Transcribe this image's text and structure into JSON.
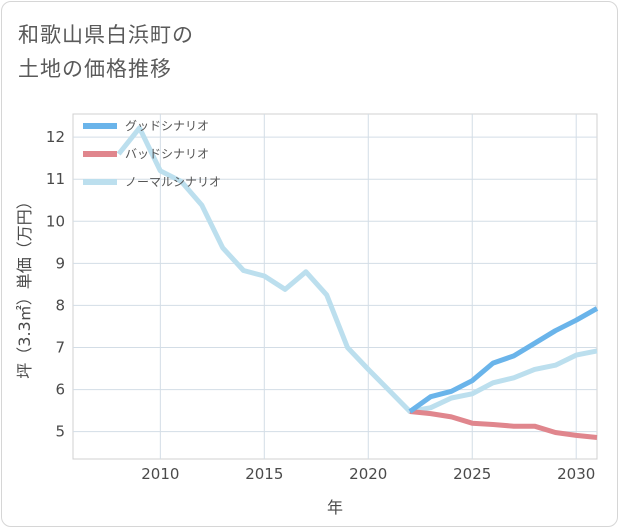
{
  "title_lines": [
    "和歌山県白浜町の",
    "土地の価格推移"
  ],
  "chart_data": {
    "type": "line",
    "xlabel": "年",
    "ylabel": "坪（3.3㎡）単価（万円）",
    "xlim": [
      2005.8,
      2031
    ],
    "ylim": [
      4.35,
      12.55
    ],
    "xticks": [
      2010,
      2015,
      2020,
      2025,
      2030
    ],
    "yticks": [
      5,
      6,
      7,
      8,
      9,
      10,
      11,
      12
    ],
    "grid": true,
    "legend_position": "top-left",
    "series": [
      {
        "name": "グッドシナリオ",
        "color": "#6ab4ea",
        "x": [
          2022,
          2023,
          2024,
          2025,
          2026,
          2027,
          2028,
          2029,
          2030,
          2031
        ],
        "y": [
          5.48,
          5.83,
          5.96,
          6.21,
          6.63,
          6.8,
          7.1,
          7.4,
          7.65,
          7.93
        ]
      },
      {
        "name": "バッドシナリオ",
        "color": "#e0868d",
        "x": [
          2022,
          2023,
          2024,
          2025,
          2026,
          2027,
          2028,
          2029,
          2030,
          2031
        ],
        "y": [
          5.48,
          5.43,
          5.35,
          5.2,
          5.17,
          5.13,
          5.13,
          4.98,
          4.91,
          4.86
        ]
      },
      {
        "name": "ノーマルシナリオ",
        "color": "#bcdfee",
        "x": [
          2008,
          2009,
          2010,
          2011,
          2012,
          2013,
          2014,
          2015,
          2016,
          2017,
          2018,
          2019,
          2020,
          2021,
          2022,
          2023,
          2024,
          2025,
          2026,
          2027,
          2028,
          2029,
          2030,
          2031
        ],
        "y": [
          11.6,
          12.22,
          11.2,
          10.95,
          10.38,
          9.37,
          8.83,
          8.7,
          8.38,
          8.8,
          8.25,
          7.0,
          6.48,
          5.98,
          5.48,
          5.57,
          5.8,
          5.9,
          6.16,
          6.28,
          6.48,
          6.58,
          6.82,
          6.92
        ]
      }
    ]
  }
}
